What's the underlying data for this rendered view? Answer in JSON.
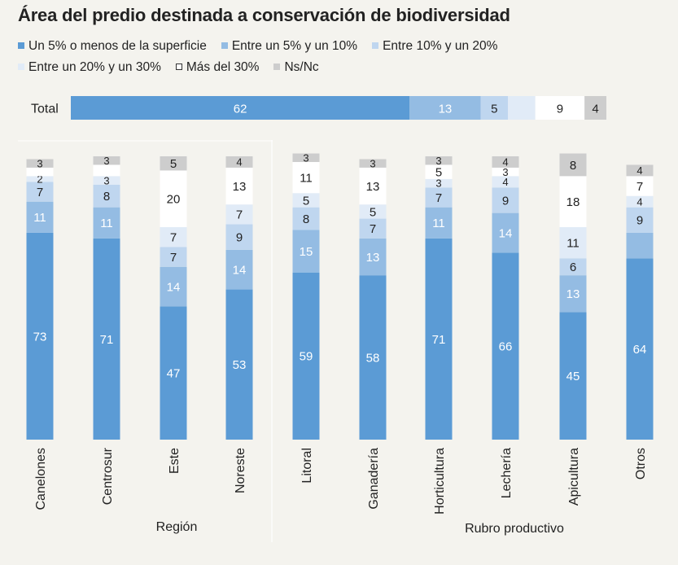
{
  "chart_data": {
    "type": "bar",
    "title": "Área del predio destinada a conservación de biodiversidad",
    "legend": [
      {
        "name": "Un 5% o menos de la superficie",
        "color": "#5b9bd5"
      },
      {
        "name": "Entre un 5% y un 10%",
        "color": "#94bce3"
      },
      {
        "name": "Entre 10% y un 20%",
        "color": "#bfd6ef"
      },
      {
        "name": "Entre un 20% y un 30%",
        "color": "#e1ebf7"
      },
      {
        "name": "Más del 30%",
        "color": "#ffffff"
      },
      {
        "name": "Ns/Nc",
        "color": "#cdcdcd"
      }
    ],
    "total": {
      "label": "Total",
      "values": [
        62,
        13,
        5,
        5,
        9,
        4
      ],
      "shown_labels": [
        "62",
        "13",
        "5",
        "",
        "9",
        "4"
      ]
    },
    "groups": [
      {
        "name": "Región",
        "categories": [
          "Canelones",
          "Centrosur",
          "Este",
          "Noreste"
        ]
      },
      {
        "name": "Rubro productivo",
        "categories": [
          "Litoral",
          "Ganadería",
          "Horticultura",
          "Lechería",
          "Apicultura",
          "Otros"
        ]
      }
    ],
    "categories": [
      "Canelones",
      "Centrosur",
      "Este",
      "Noreste",
      "Litoral",
      "Ganadería",
      "Horticultura",
      "Lechería",
      "Apicultura",
      "Otros"
    ],
    "series": [
      {
        "name": "Un 5% o menos de la superficie",
        "values": [
          73,
          71,
          47,
          53,
          59,
          58,
          71,
          66,
          45,
          64
        ]
      },
      {
        "name": "Entre un 5% y un 10%",
        "values": [
          11,
          11,
          14,
          14,
          15,
          13,
          11,
          14,
          13,
          9
        ]
      },
      {
        "name": "Entre 10% y un 20%",
        "values": [
          7,
          8,
          7,
          9,
          8,
          7,
          7,
          9,
          6,
          9
        ]
      },
      {
        "name": "Entre un 20% y un 30%",
        "values": [
          2,
          3,
          7,
          7,
          5,
          5,
          3,
          4,
          11,
          4
        ]
      },
      {
        "name": "Más del 30%",
        "values": [
          3,
          4,
          20,
          13,
          11,
          13,
          5,
          3,
          18,
          7
        ]
      },
      {
        "name": "Ns/Nc",
        "values": [
          3,
          3,
          5,
          4,
          3,
          3,
          3,
          4,
          8,
          4
        ]
      }
    ],
    "shown_labels": [
      [
        "73",
        "11",
        "7",
        "2",
        "",
        "3"
      ],
      [
        "71",
        "11",
        "8",
        "3",
        "",
        "3"
      ],
      [
        "47",
        "14",
        "7",
        "7",
        "20",
        "5"
      ],
      [
        "53",
        "14",
        "9",
        "7",
        "13",
        "4"
      ],
      [
        "59",
        "15",
        "8",
        "5",
        "11",
        "3"
      ],
      [
        "58",
        "13",
        "7",
        "5",
        "13",
        "3"
      ],
      [
        "71",
        "11",
        "7",
        "3",
        "5",
        "3"
      ],
      [
        "66",
        "14",
        "9",
        "4",
        "3",
        "4"
      ],
      [
        "45",
        "13",
        "6",
        "11",
        "18",
        "8"
      ],
      [
        "64",
        "",
        "9",
        "4",
        "7",
        "4"
      ]
    ],
    "ylim": [
      0,
      100
    ],
    "xlabel": "",
    "ylabel": ""
  }
}
